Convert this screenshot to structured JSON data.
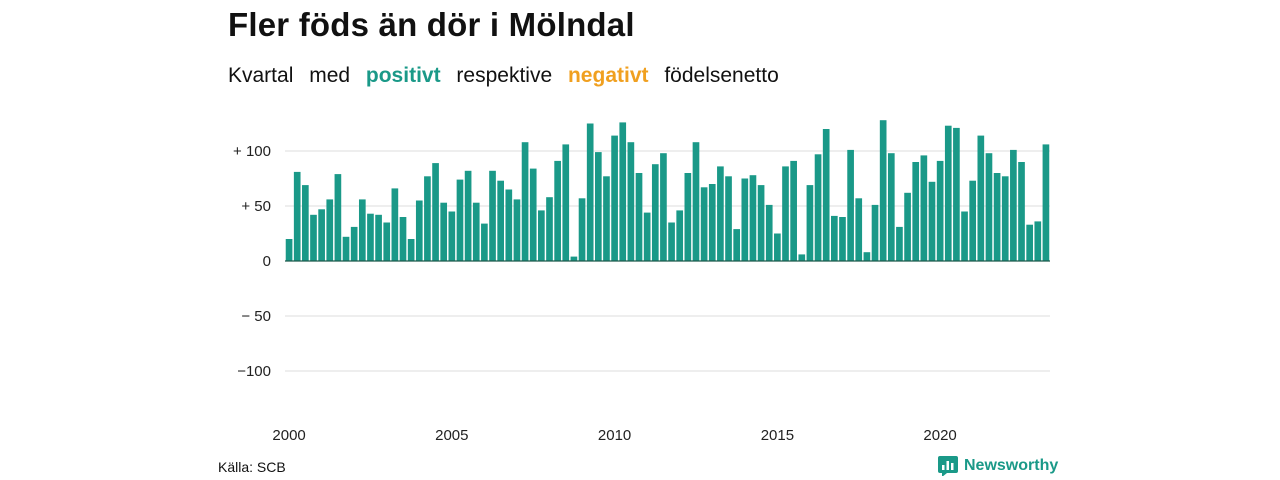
{
  "title": "Fler föds än dör i Mölndal",
  "subtitle": {
    "part1": "Kvartal",
    "part2": "med",
    "positive": "positivt",
    "part3": "respektive",
    "negative": "negativt",
    "part4": "födelsenetto"
  },
  "colors": {
    "positive": "#1a9988",
    "negative": "#f0a020"
  },
  "source": "Källa: SCB",
  "brand": {
    "name": "Newsworthy",
    "icon": "newsworthy-logo-icon"
  },
  "chart_data": {
    "type": "bar",
    "ylim": [
      -120,
      130
    ],
    "grid": true,
    "y_ticks": [
      {
        "value": 100,
        "label": "+ 100"
      },
      {
        "value": 50,
        "label": "+  50"
      },
      {
        "value": 0,
        "label": "0"
      },
      {
        "value": -50,
        "label": "− 50"
      },
      {
        "value": -100,
        "label": "−100"
      }
    ],
    "x_ticks": [
      "2000",
      "2005",
      "2010",
      "2015",
      "2020"
    ],
    "x_tick_years": [
      2000,
      2005,
      2010,
      2015,
      2020
    ],
    "start_year": 2000,
    "values": [
      20,
      81,
      69,
      42,
      47,
      56,
      79,
      22,
      31,
      56,
      43,
      42,
      35,
      66,
      40,
      20,
      55,
      77,
      89,
      53,
      45,
      74,
      82,
      53,
      34,
      82,
      73,
      65,
      56,
      108,
      84,
      46,
      58,
      91,
      106,
      4,
      57,
      125,
      99,
      77,
      114,
      126,
      108,
      80,
      44,
      88,
      98,
      35,
      46,
      80,
      108,
      67,
      70,
      86,
      77,
      29,
      75,
      78,
      69,
      51,
      25,
      86,
      91,
      6,
      69,
      97,
      120,
      41,
      40,
      101,
      57,
      8,
      51,
      128,
      98,
      31,
      62,
      90,
      96,
      72,
      91,
      123,
      121,
      45,
      73,
      114,
      98,
      80,
      77,
      101,
      90,
      33,
      36,
      106
    ]
  }
}
